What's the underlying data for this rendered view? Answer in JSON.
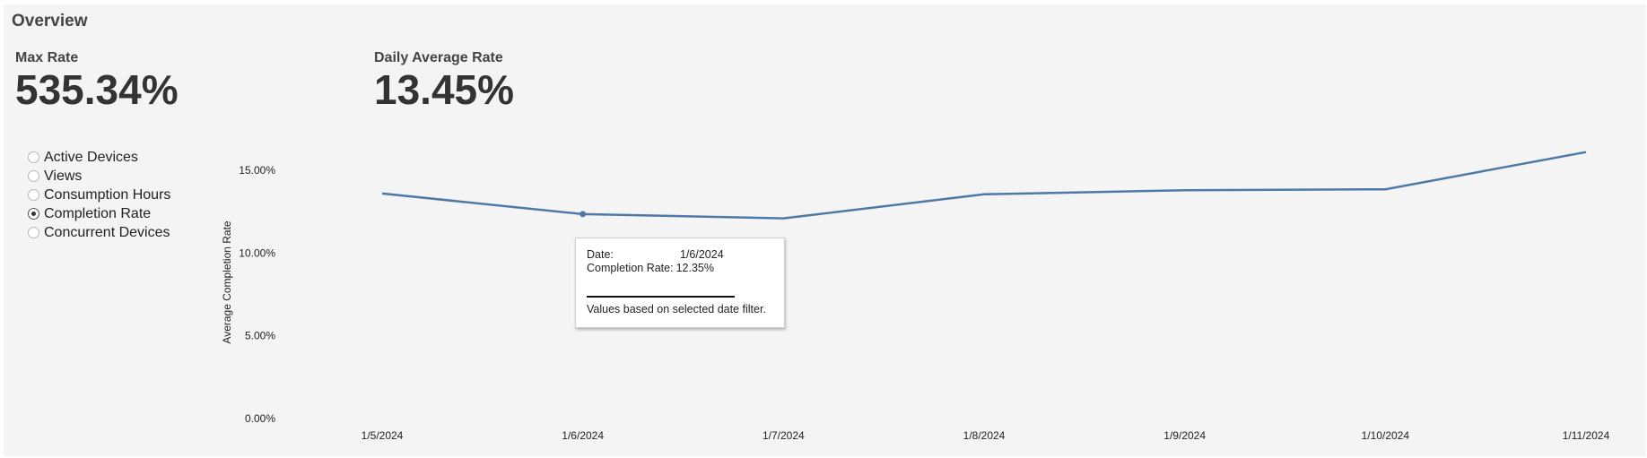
{
  "page": {
    "title": "Overview"
  },
  "kpis": [
    {
      "label": "Max Rate",
      "value": "535.34%"
    },
    {
      "label": "Daily Average Rate",
      "value": "13.45%"
    }
  ],
  "metric_selector": {
    "options": [
      "Active Devices",
      "Views",
      "Consumption Hours",
      "Completion Rate",
      "Concurrent Devices"
    ],
    "selected": "Completion Rate"
  },
  "tooltip": {
    "date_label": "Date:",
    "date_value": "1/6/2024",
    "rate_label": "Completion Rate:",
    "rate_value": "12.35%",
    "note": "Values based on selected date filter."
  },
  "chart_data": {
    "type": "line",
    "title": "",
    "xlabel": "",
    "ylabel": "Average Completion Rate",
    "categories": [
      "1/5/2024",
      "1/6/2024",
      "1/7/2024",
      "1/8/2024",
      "1/9/2024",
      "1/10/2024",
      "1/11/2024"
    ],
    "series": [
      {
        "values": [
          13.6,
          12.35,
          12.1,
          13.55,
          13.8,
          13.85,
          16.1
        ]
      }
    ],
    "ylim": [
      0,
      17.5
    ],
    "yticks": [
      0,
      5,
      10,
      15
    ],
    "ytick_labels": [
      "0.00%",
      "5.00%",
      "10.00%",
      "15.00%"
    ],
    "highlighted_index": 1,
    "grid": false,
    "colors": {
      "line": "#4e79a7"
    }
  }
}
